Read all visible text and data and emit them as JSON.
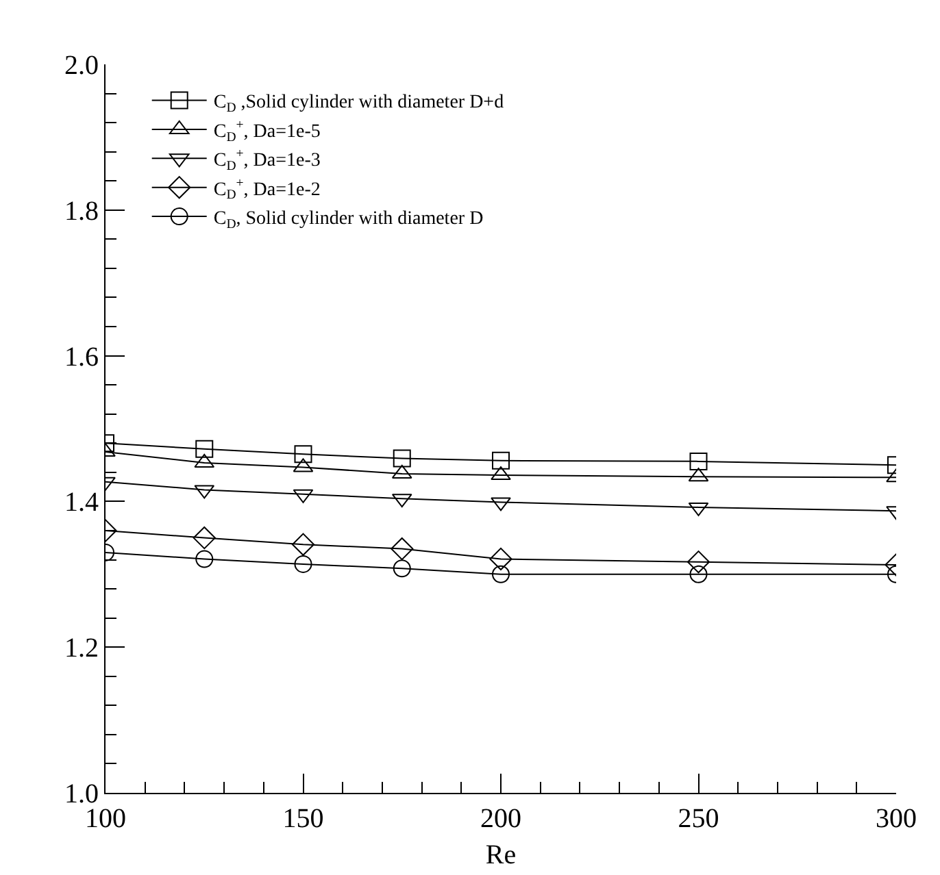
{
  "chart_data": {
    "type": "line",
    "xlabel": "Re",
    "x": [
      100,
      125,
      150,
      175,
      200,
      250,
      300
    ],
    "xlim": [
      100,
      300
    ],
    "xticks": [
      100,
      150,
      200,
      250,
      300
    ],
    "ylim": [
      1.0,
      2.0
    ],
    "yticks": [
      {
        "value": 1.0,
        "label": "1.0"
      },
      1.2,
      1.4,
      1.6,
      1.8,
      {
        "value": 2.0,
        "label": "2.0"
      }
    ],
    "grid": false,
    "legend": "top left",
    "line_style": "solid",
    "series": [
      {
        "name": "C$_{D}$ ,Solid cylinder with diameter D+d",
        "color": "#000000",
        "marker": "square",
        "values": [
          1.48,
          1.472,
          1.465,
          1.459,
          1.456,
          1.455,
          1.45
        ]
      },
      {
        "name": "C$_{D}$$^{+}$, Da=1e-5",
        "color": "#000000",
        "marker": "triangle",
        "values": [
          1.468,
          1.453,
          1.447,
          1.438,
          1.436,
          1.434,
          1.433
        ]
      },
      {
        "name": "C$_{D}$$^{+}$, Da=1e-3",
        "color": "#000000",
        "marker": "triangle-down",
        "values": [
          1.427,
          1.416,
          1.41,
          1.404,
          1.399,
          1.392,
          1.387
        ]
      },
      {
        "name": "C$_{D}$$^{+}$, Da=1e-2",
        "color": "#000000",
        "marker": "diamond",
        "values": [
          1.36,
          1.35,
          1.341,
          1.335,
          1.321,
          1.317,
          1.313
        ]
      },
      {
        "name": "C$_{D}$, Solid cylinder with diameter D",
        "color": "#000000",
        "marker": "circle",
        "values": [
          1.33,
          1.321,
          1.314,
          1.308,
          1.3,
          1.3,
          1.3
        ]
      }
    ]
  }
}
